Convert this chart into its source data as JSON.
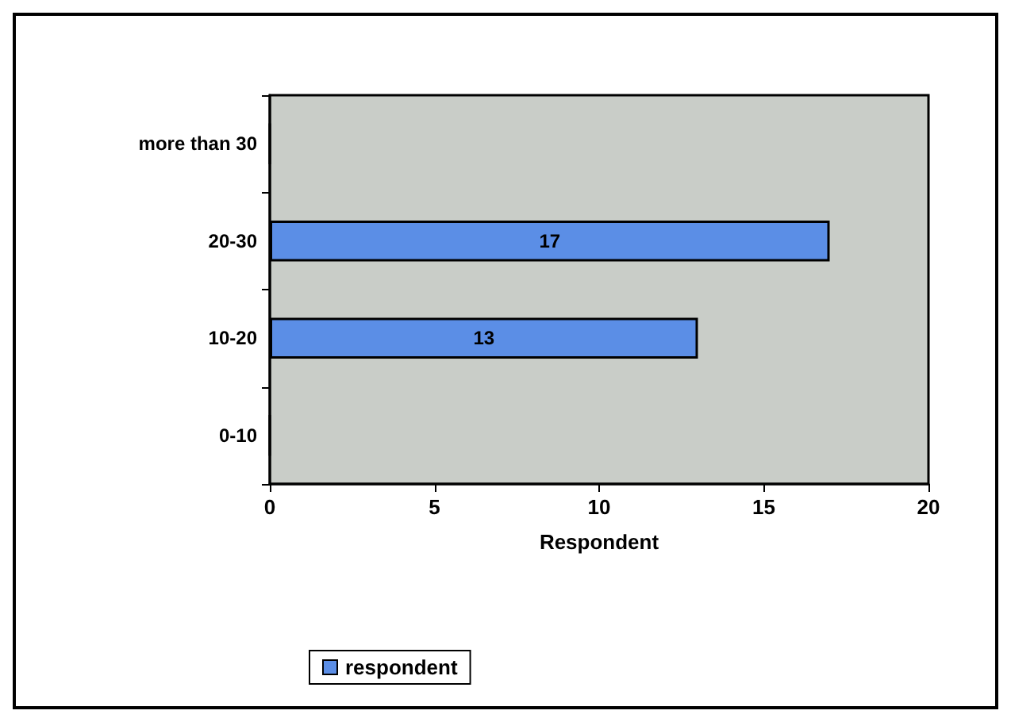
{
  "chart_data": {
    "type": "bar",
    "orientation": "horizontal",
    "xlabel": "Respondent",
    "categories": [
      "more than 30",
      "20-30",
      "10-20",
      "0-10"
    ],
    "series": [
      {
        "name": "respondent",
        "color": "#5b8ee6",
        "values": [
          0,
          17,
          13,
          0
        ],
        "value_labels": [
          null,
          "17",
          "13",
          null
        ]
      }
    ],
    "xlim": [
      0,
      20
    ],
    "xticks": [
      0,
      5,
      10,
      15,
      20
    ],
    "grid": false,
    "legend": "bottom left"
  }
}
